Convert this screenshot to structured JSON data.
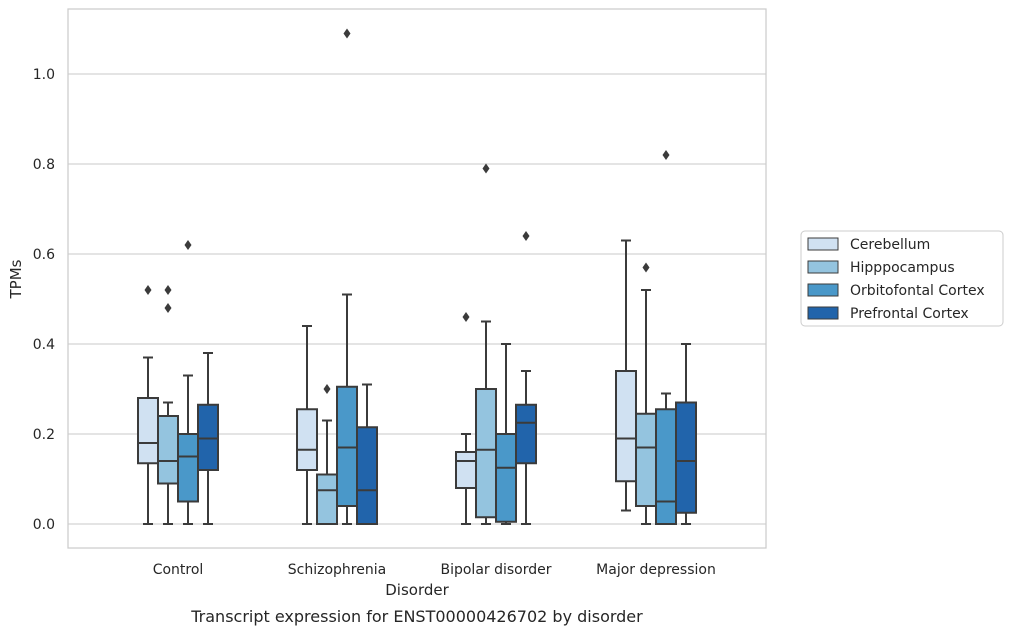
{
  "caption": "Transcript expression for ENST00000426702 by disorder",
  "chart_data": {
    "type": "boxplot",
    "title": "",
    "xlabel": "Disorder",
    "ylabel": "TPMs",
    "ylim": [
      -0.05,
      1.15
    ],
    "yticks": [
      0.0,
      0.2,
      0.4,
      0.6,
      0.8,
      1.0
    ],
    "ytick_labels": [
      "0.0",
      "0.2",
      "0.4",
      "0.6",
      "0.8",
      "1.0"
    ],
    "grid": "horizontal",
    "legend_position": "right",
    "categories": [
      "Control",
      "Schizophrenia",
      "Bipolar disorder",
      "Major depression"
    ],
    "series": [
      {
        "name": "Cerebellum",
        "color": "#d0e1f2",
        "boxes": [
          {
            "whislo": 0.0,
            "q1": 0.135,
            "med": 0.18,
            "q3": 0.28,
            "whishi": 0.37,
            "fliers": [
              0.52
            ]
          },
          {
            "whislo": 0.0,
            "q1": 0.12,
            "med": 0.165,
            "q3": 0.255,
            "whishi": 0.44,
            "fliers": []
          },
          {
            "whislo": 0.0,
            "q1": 0.08,
            "med": 0.14,
            "q3": 0.16,
            "whishi": 0.2,
            "fliers": [
              0.46
            ]
          },
          {
            "whislo": 0.03,
            "q1": 0.095,
            "med": 0.19,
            "q3": 0.34,
            "whishi": 0.63,
            "fliers": []
          }
        ]
      },
      {
        "name": "Hipppocampus",
        "color": "#94c4df",
        "boxes": [
          {
            "whislo": 0.0,
            "q1": 0.09,
            "med": 0.14,
            "q3": 0.24,
            "whishi": 0.27,
            "fliers": [
              0.48,
              0.52
            ]
          },
          {
            "whislo": 0.0,
            "q1": 0.0,
            "med": 0.075,
            "q3": 0.11,
            "whishi": 0.23,
            "fliers": [
              0.3
            ]
          },
          {
            "whislo": 0.0,
            "q1": 0.015,
            "med": 0.165,
            "q3": 0.3,
            "whishi": 0.45,
            "fliers": [
              0.79
            ]
          },
          {
            "whislo": 0.0,
            "q1": 0.04,
            "med": 0.17,
            "q3": 0.245,
            "whishi": 0.52,
            "fliers": [
              0.57
            ]
          }
        ]
      },
      {
        "name": "Orbitofontal Cortex",
        "color": "#4a98c9",
        "boxes": [
          {
            "whislo": 0.0,
            "q1": 0.05,
            "med": 0.15,
            "q3": 0.2,
            "whishi": 0.33,
            "fliers": [
              0.62
            ]
          },
          {
            "whislo": 0.0,
            "q1": 0.04,
            "med": 0.17,
            "q3": 0.305,
            "whishi": 0.51,
            "fliers": [
              1.09
            ]
          },
          {
            "whislo": 0.0,
            "q1": 0.005,
            "med": 0.125,
            "q3": 0.2,
            "whishi": 0.4,
            "fliers": []
          },
          {
            "whislo": 0.0,
            "q1": 0.0,
            "med": 0.05,
            "q3": 0.255,
            "whishi": 0.29,
            "fliers": [
              0.82
            ]
          }
        ]
      },
      {
        "name": "Prefrontal Cortex",
        "color": "#2164ab",
        "boxes": [
          {
            "whislo": 0.0,
            "q1": 0.12,
            "med": 0.19,
            "q3": 0.265,
            "whishi": 0.38,
            "fliers": []
          },
          {
            "whislo": 0.0,
            "q1": 0.0,
            "med": 0.075,
            "q3": 0.215,
            "whishi": 0.31,
            "fliers": []
          },
          {
            "whislo": 0.0,
            "q1": 0.135,
            "med": 0.225,
            "q3": 0.265,
            "whishi": 0.34,
            "fliers": [
              0.64
            ]
          },
          {
            "whislo": 0.0,
            "q1": 0.025,
            "med": 0.14,
            "q3": 0.27,
            "whishi": 0.4,
            "fliers": []
          }
        ]
      }
    ]
  }
}
